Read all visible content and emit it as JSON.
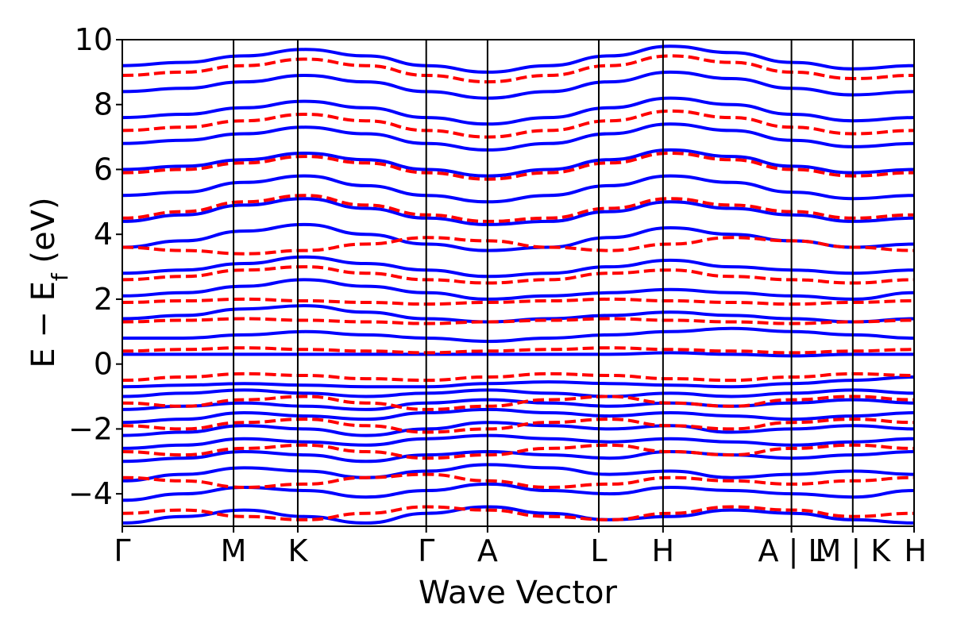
{
  "chart_data": {
    "type": "line",
    "xlabel": "Wave Vector",
    "ylabel": "E − E_f (eV)",
    "ylabel_main": "E − E",
    "ylabel_sub": "f",
    "ylabel_unit": " (eV)",
    "ylim": [
      -5,
      10
    ],
    "yticks": [
      {
        "value": -4,
        "label": "−4"
      },
      {
        "value": -2,
        "label": "−2"
      },
      {
        "value": 0,
        "label": "0"
      },
      {
        "value": 2,
        "label": "2"
      },
      {
        "value": 4,
        "label": "4"
      },
      {
        "value": 6,
        "label": "6"
      },
      {
        "value": 8,
        "label": "8"
      },
      {
        "value": 10,
        "label": "10"
      }
    ],
    "kpoint_labels": [
      "Γ",
      "M",
      "K",
      "Γ",
      "A",
      "L",
      "H",
      "A | L",
      "M | K",
      "H"
    ],
    "kpoint_positions": [
      0,
      0.5774,
      0.9107,
      1.5774,
      1.8956,
      2.473,
      2.8063,
      3.473,
      3.7912,
      4.1094
    ],
    "grid": false,
    "legend": "none",
    "series": [
      {
        "style": "solid",
        "color": "#0000ff",
        "bands": [
          [
            -4.9,
            -4.7,
            -4.5,
            -4.7,
            -4.9,
            -4.6,
            -4.4,
            -4.6,
            -4.8,
            -4.7,
            -4.5,
            -4.6,
            -4.8,
            -4.9
          ],
          [
            -4.2,
            -4.0,
            -3.8,
            -3.9,
            -4.1,
            -3.9,
            -3.7,
            -3.9,
            -4.0,
            -3.8,
            -3.9,
            -4.0,
            -4.1,
            -3.9
          ],
          [
            -3.6,
            -3.4,
            -3.2,
            -3.3,
            -3.5,
            -3.3,
            -3.1,
            -3.2,
            -3.4,
            -3.3,
            -3.5,
            -3.4,
            -3.3,
            -3.4
          ],
          [
            -3.0,
            -2.9,
            -2.7,
            -2.8,
            -3.0,
            -2.8,
            -2.7,
            -2.8,
            -2.9,
            -2.7,
            -2.8,
            -2.9,
            -2.8,
            -2.7
          ],
          [
            -2.6,
            -2.5,
            -2.3,
            -2.4,
            -2.5,
            -2.3,
            -2.2,
            -2.3,
            -2.4,
            -2.3,
            -2.4,
            -2.5,
            -2.4,
            -2.3
          ],
          [
            -2.2,
            -2.1,
            -1.9,
            -2.0,
            -2.2,
            -2.0,
            -1.8,
            -1.9,
            -2.0,
            -1.9,
            -2.1,
            -2.0,
            -1.9,
            -2.0
          ],
          [
            -1.8,
            -1.7,
            -1.5,
            -1.6,
            -1.7,
            -1.5,
            -1.4,
            -1.5,
            -1.6,
            -1.5,
            -1.6,
            -1.7,
            -1.6,
            -1.5
          ],
          [
            -1.4,
            -1.3,
            -1.2,
            -1.3,
            -1.4,
            -1.2,
            -1.1,
            -1.2,
            -1.3,
            -1.2,
            -1.3,
            -1.2,
            -1.1,
            -1.2
          ],
          [
            -1.0,
            -0.9,
            -0.8,
            -0.9,
            -1.0,
            -0.9,
            -0.8,
            -0.9,
            -1.0,
            -0.9,
            -1.0,
            -0.9,
            -0.8,
            -0.9
          ],
          [
            -0.7,
            -0.65,
            -0.6,
            -0.65,
            -0.7,
            -0.7,
            -0.6,
            -0.55,
            -0.6,
            -0.65,
            -0.7,
            -0.6,
            -0.5,
            -0.4
          ],
          [
            0.3,
            0.3,
            0.3,
            0.3,
            0.3,
            0.3,
            0.3,
            0.3,
            0.3,
            0.35,
            0.3,
            0.25,
            0.3,
            0.3
          ],
          [
            0.8,
            0.8,
            0.9,
            1.0,
            0.9,
            0.8,
            0.7,
            0.8,
            0.9,
            1.0,
            1.1,
            1.0,
            0.9,
            0.8
          ],
          [
            1.4,
            1.5,
            1.7,
            1.8,
            1.6,
            1.4,
            1.3,
            1.4,
            1.5,
            1.6,
            1.5,
            1.4,
            1.3,
            1.4
          ],
          [
            2.1,
            2.2,
            2.4,
            2.6,
            2.4,
            2.2,
            2.0,
            2.1,
            2.2,
            2.3,
            2.2,
            2.1,
            2.0,
            2.2
          ],
          [
            2.8,
            2.9,
            3.1,
            3.3,
            3.1,
            2.9,
            2.7,
            2.8,
            3.0,
            3.2,
            3.0,
            2.9,
            2.8,
            2.9
          ],
          [
            3.6,
            3.8,
            4.1,
            4.3,
            4.0,
            3.7,
            3.5,
            3.6,
            3.9,
            4.2,
            4.0,
            3.8,
            3.6,
            3.7
          ],
          [
            4.4,
            4.6,
            4.9,
            5.1,
            4.8,
            4.5,
            4.3,
            4.4,
            4.7,
            5.0,
            4.8,
            4.6,
            4.4,
            4.5
          ],
          [
            5.2,
            5.3,
            5.6,
            5.8,
            5.5,
            5.2,
            5.0,
            5.2,
            5.5,
            5.8,
            5.6,
            5.3,
            5.1,
            5.2
          ],
          [
            6.0,
            6.1,
            6.3,
            6.5,
            6.3,
            6.0,
            5.8,
            6.0,
            6.3,
            6.6,
            6.4,
            6.1,
            5.9,
            6.0
          ],
          [
            6.8,
            6.9,
            7.1,
            7.3,
            7.1,
            6.8,
            6.6,
            6.8,
            7.1,
            7.4,
            7.2,
            6.9,
            6.7,
            6.8
          ],
          [
            7.6,
            7.7,
            7.9,
            8.1,
            7.9,
            7.6,
            7.4,
            7.6,
            7.9,
            8.2,
            8.0,
            7.7,
            7.5,
            7.6
          ],
          [
            8.4,
            8.5,
            8.7,
            8.9,
            8.7,
            8.4,
            8.2,
            8.4,
            8.7,
            9.0,
            8.8,
            8.5,
            8.3,
            8.4
          ],
          [
            9.2,
            9.3,
            9.5,
            9.7,
            9.5,
            9.2,
            9.0,
            9.2,
            9.5,
            9.8,
            9.6,
            9.3,
            9.1,
            9.2
          ]
        ]
      },
      {
        "style": "dashed",
        "color": "#ff0000",
        "bands": [
          [
            -4.6,
            -4.5,
            -4.7,
            -4.8,
            -4.6,
            -4.4,
            -4.5,
            -4.7,
            -4.8,
            -4.6,
            -4.4,
            -4.5,
            -4.7,
            -4.6
          ],
          [
            -3.5,
            -3.6,
            -3.8,
            -3.7,
            -3.5,
            -3.4,
            -3.6,
            -3.8,
            -3.7,
            -3.5,
            -3.6,
            -3.7,
            -3.6,
            -3.5
          ],
          [
            -2.7,
            -2.8,
            -2.6,
            -2.5,
            -2.7,
            -2.9,
            -2.8,
            -2.6,
            -2.5,
            -2.7,
            -2.8,
            -2.6,
            -2.5,
            -2.6
          ],
          [
            -1.9,
            -2.0,
            -1.8,
            -1.7,
            -1.9,
            -2.1,
            -2.0,
            -1.8,
            -1.7,
            -1.9,
            -2.0,
            -1.8,
            -1.7,
            -1.8
          ],
          [
            -1.2,
            -1.3,
            -1.1,
            -1.0,
            -1.2,
            -1.4,
            -1.3,
            -1.1,
            -1.0,
            -1.2,
            -1.3,
            -1.1,
            -1.0,
            -1.1
          ],
          [
            -0.5,
            -0.4,
            -0.3,
            -0.35,
            -0.45,
            -0.5,
            -0.4,
            -0.3,
            -0.35,
            -0.45,
            -0.5,
            -0.4,
            -0.3,
            -0.35
          ],
          [
            0.4,
            0.45,
            0.5,
            0.45,
            0.4,
            0.35,
            0.4,
            0.45,
            0.5,
            0.45,
            0.4,
            0.35,
            0.4,
            0.45
          ],
          [
            1.3,
            1.35,
            1.4,
            1.35,
            1.3,
            1.25,
            1.3,
            1.35,
            1.4,
            1.35,
            1.3,
            1.25,
            1.3,
            1.35
          ],
          [
            1.9,
            1.95,
            2.0,
            1.95,
            1.9,
            1.85,
            1.9,
            1.95,
            2.0,
            1.95,
            1.9,
            1.85,
            1.9,
            1.95
          ],
          [
            2.6,
            2.7,
            2.9,
            3.0,
            2.8,
            2.6,
            2.5,
            2.6,
            2.8,
            2.9,
            2.7,
            2.6,
            2.5,
            2.6
          ],
          [
            3.6,
            3.5,
            3.4,
            3.5,
            3.7,
            3.9,
            3.8,
            3.6,
            3.5,
            3.7,
            3.9,
            3.8,
            3.6,
            3.5
          ],
          [
            4.5,
            4.7,
            5.0,
            5.2,
            4.9,
            4.6,
            4.4,
            4.5,
            4.8,
            5.1,
            4.9,
            4.7,
            4.5,
            4.6
          ],
          [
            5.9,
            6.0,
            6.2,
            6.4,
            6.2,
            5.9,
            5.7,
            5.9,
            6.2,
            6.5,
            6.3,
            6.0,
            5.8,
            5.9
          ],
          [
            7.2,
            7.3,
            7.5,
            7.7,
            7.5,
            7.2,
            7.0,
            7.2,
            7.5,
            7.8,
            7.6,
            7.3,
            7.1,
            7.2
          ],
          [
            8.9,
            9.0,
            9.2,
            9.4,
            9.2,
            8.9,
            8.7,
            8.9,
            9.2,
            9.5,
            9.3,
            9.0,
            8.8,
            8.9
          ]
        ]
      }
    ]
  }
}
